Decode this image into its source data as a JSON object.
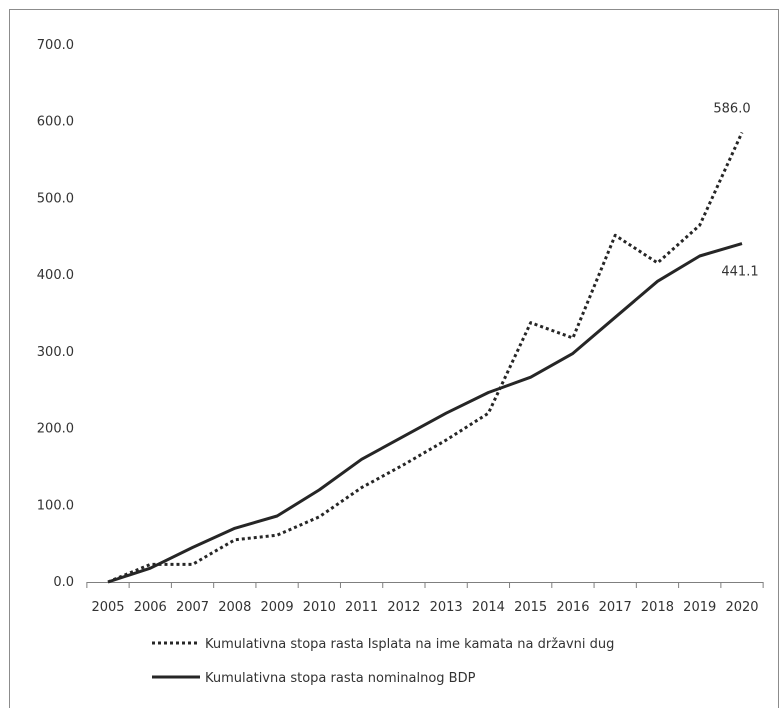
{
  "chart_data": {
    "type": "line",
    "x": [
      "2005",
      "2006",
      "2007",
      "2008",
      "2009",
      "2010",
      "2011",
      "2012",
      "2013",
      "2014",
      "2015",
      "2016",
      "2017",
      "2018",
      "2019",
      "2020"
    ],
    "ylim": [
      0,
      700
    ],
    "yticks": [
      "0.0",
      "100.0",
      "200.0",
      "300.0",
      "400.0",
      "500.0",
      "600.0",
      "700.0"
    ],
    "grid": false,
    "legend_position": "bottom",
    "series": [
      {
        "name": "Kumulativna stopa rasta Isplata na ime kamata na državni dug",
        "style": "dotted",
        "color": "#262626",
        "values": [
          0,
          23,
          23,
          55,
          61,
          85,
          123,
          153,
          185,
          220,
          338,
          318,
          452,
          416,
          465,
          586.0
        ]
      },
      {
        "name": "Kumulativna stopa rasta nominalnog  BDP",
        "style": "solid",
        "color": "#262626",
        "values": [
          0,
          18,
          45,
          70,
          86,
          120,
          160,
          190,
          220,
          247,
          267,
          298,
          345,
          392,
          425,
          441.1
        ]
      }
    ],
    "data_labels": [
      {
        "series": 0,
        "index": 15,
        "text": "586.0"
      },
      {
        "series": 1,
        "index": 15,
        "text": "441.1"
      }
    ]
  }
}
